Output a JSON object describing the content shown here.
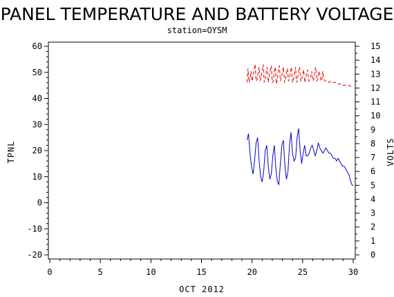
{
  "chart_data": {
    "type": "line",
    "title": "PANEL TEMPERATURE AND BATTERY VOLTAGE",
    "subtitle": "station=OYSM",
    "xlabel": "OCT 2012",
    "ylabel_left": "TPNL",
    "ylabel_right": "VOLTS",
    "xlim": [
      0,
      30
    ],
    "ylim_left": [
      -20,
      60
    ],
    "ylim_right": [
      0,
      15
    ],
    "x_ticks": [
      0,
      5,
      10,
      15,
      20,
      25,
      30
    ],
    "y_left_ticks": [
      -20,
      -10,
      0,
      10,
      20,
      30,
      40,
      50,
      60
    ],
    "y_right_ticks": [
      0,
      1,
      2,
      3,
      4,
      5,
      6,
      7,
      8,
      9,
      10,
      11,
      12,
      13,
      14,
      15
    ],
    "grid": false,
    "series": [
      {
        "axis": "left",
        "color": "#0000cc",
        "style": "solid",
        "points": [
          [
            19.5,
            24
          ],
          [
            19.65,
            26.5
          ],
          [
            19.8,
            19
          ],
          [
            19.95,
            14
          ],
          [
            20.1,
            11
          ],
          [
            20.25,
            16
          ],
          [
            20.4,
            23
          ],
          [
            20.55,
            25
          ],
          [
            20.7,
            16
          ],
          [
            20.85,
            10
          ],
          [
            21.0,
            8
          ],
          [
            21.15,
            12
          ],
          [
            21.3,
            20
          ],
          [
            21.45,
            22
          ],
          [
            21.6,
            14
          ],
          [
            21.75,
            9
          ],
          [
            21.9,
            11
          ],
          [
            22.05,
            18
          ],
          [
            22.2,
            22
          ],
          [
            22.35,
            13
          ],
          [
            22.5,
            8
          ],
          [
            22.65,
            7
          ],
          [
            22.8,
            15
          ],
          [
            22.95,
            22
          ],
          [
            23.1,
            24
          ],
          [
            23.25,
            14
          ],
          [
            23.4,
            9
          ],
          [
            23.55,
            12
          ],
          [
            23.7,
            22
          ],
          [
            23.85,
            27
          ],
          [
            24.0,
            19
          ],
          [
            24.15,
            16
          ],
          [
            24.3,
            17
          ],
          [
            24.45,
            25
          ],
          [
            24.6,
            28.5
          ],
          [
            24.75,
            20
          ],
          [
            24.9,
            15
          ],
          [
            25.05,
            19
          ],
          [
            25.2,
            22
          ],
          [
            25.35,
            18
          ],
          [
            25.5,
            18
          ],
          [
            25.65,
            19
          ],
          [
            25.8,
            21
          ],
          [
            25.95,
            22
          ],
          [
            26.1,
            20
          ],
          [
            26.25,
            18
          ],
          [
            26.4,
            20
          ],
          [
            26.55,
            23
          ],
          [
            26.7,
            21
          ],
          [
            26.85,
            20
          ],
          [
            27.0,
            19
          ],
          [
            27.15,
            20
          ],
          [
            27.3,
            21
          ],
          [
            27.45,
            20
          ],
          [
            27.6,
            19
          ],
          [
            27.75,
            19
          ],
          [
            27.9,
            18
          ],
          [
            28.05,
            17
          ],
          [
            28.2,
            17
          ],
          [
            28.35,
            16
          ],
          [
            28.5,
            17
          ],
          [
            28.65,
            16
          ],
          [
            28.8,
            15
          ],
          [
            28.95,
            14
          ],
          [
            29.1,
            14
          ],
          [
            29.25,
            13
          ],
          [
            29.4,
            12
          ],
          [
            29.55,
            11
          ],
          [
            29.7,
            9
          ],
          [
            29.85,
            7
          ],
          [
            30.0,
            6.5
          ]
        ]
      },
      {
        "axis": "right",
        "color": "#dd0000",
        "style": "dashed",
        "points": [
          [
            19.5,
            12.4
          ],
          [
            19.6,
            13.4
          ],
          [
            19.7,
            12.4
          ],
          [
            19.8,
            12.7
          ],
          [
            19.9,
            13.2
          ],
          [
            20.0,
            12.5
          ],
          [
            20.1,
            12.8
          ],
          [
            20.2,
            13.3
          ],
          [
            20.3,
            13.7
          ],
          [
            20.4,
            12.5
          ],
          [
            20.5,
            12.6
          ],
          [
            20.6,
            13.1
          ],
          [
            20.7,
            13.5
          ],
          [
            20.8,
            12.5
          ],
          [
            20.9,
            12.7
          ],
          [
            21.0,
            13.3
          ],
          [
            21.1,
            13.7
          ],
          [
            21.2,
            12.4
          ],
          [
            21.3,
            12.6
          ],
          [
            21.4,
            13.2
          ],
          [
            21.5,
            13.5
          ],
          [
            21.6,
            12.4
          ],
          [
            21.7,
            12.8
          ],
          [
            21.8,
            13.3
          ],
          [
            21.9,
            13.6
          ],
          [
            22.0,
            12.4
          ],
          [
            22.1,
            12.5
          ],
          [
            22.2,
            13.2
          ],
          [
            22.3,
            13.5
          ],
          [
            22.4,
            12.3
          ],
          [
            22.5,
            12.6
          ],
          [
            22.6,
            13.4
          ],
          [
            22.7,
            13.6
          ],
          [
            22.8,
            12.5
          ],
          [
            22.9,
            12.7
          ],
          [
            23.0,
            13.2
          ],
          [
            23.1,
            13.5
          ],
          [
            23.2,
            12.4
          ],
          [
            23.3,
            12.6
          ],
          [
            23.4,
            13.1
          ],
          [
            23.5,
            13.4
          ],
          [
            23.6,
            12.5
          ],
          [
            23.7,
            12.7
          ],
          [
            23.8,
            13.2
          ],
          [
            23.9,
            13.5
          ],
          [
            24.0,
            12.4
          ],
          [
            24.1,
            12.6
          ],
          [
            24.2,
            13.1
          ],
          [
            24.3,
            13.5
          ],
          [
            24.4,
            12.4
          ],
          [
            24.5,
            12.6
          ],
          [
            24.6,
            13.3
          ],
          [
            24.7,
            13.5
          ],
          [
            24.8,
            12.5
          ],
          [
            24.9,
            12.6
          ],
          [
            25.0,
            13.0
          ],
          [
            25.1,
            13.3
          ],
          [
            25.2,
            12.4
          ],
          [
            25.3,
            12.6
          ],
          [
            25.4,
            13.1
          ],
          [
            25.5,
            13.3
          ],
          [
            25.6,
            12.5
          ],
          [
            25.7,
            12.6
          ],
          [
            25.8,
            12.8
          ],
          [
            25.9,
            13.2
          ],
          [
            26.0,
            12.5
          ],
          [
            26.1,
            12.6
          ],
          [
            26.2,
            13.3
          ],
          [
            26.3,
            13.5
          ],
          [
            26.4,
            12.5
          ],
          [
            26.5,
            12.6
          ],
          [
            26.6,
            13.2
          ],
          [
            26.7,
            13.0
          ],
          [
            26.8,
            12.5
          ],
          [
            26.9,
            12.6
          ],
          [
            27.0,
            13.2
          ],
          [
            27.1,
            12.6
          ],
          [
            27.2,
            12.5
          ],
          [
            27.4,
            12.5
          ],
          [
            27.6,
            12.4
          ],
          [
            27.8,
            12.5
          ],
          [
            28.0,
            12.4
          ],
          [
            28.2,
            12.4
          ],
          [
            28.4,
            12.3
          ],
          [
            28.6,
            12.3
          ],
          [
            28.8,
            12.3
          ],
          [
            29.0,
            12.2
          ],
          [
            29.2,
            12.2
          ],
          [
            29.4,
            12.2
          ],
          [
            29.6,
            12.2
          ],
          [
            29.8,
            12.1
          ],
          [
            30.0,
            12.1
          ]
        ]
      }
    ]
  }
}
